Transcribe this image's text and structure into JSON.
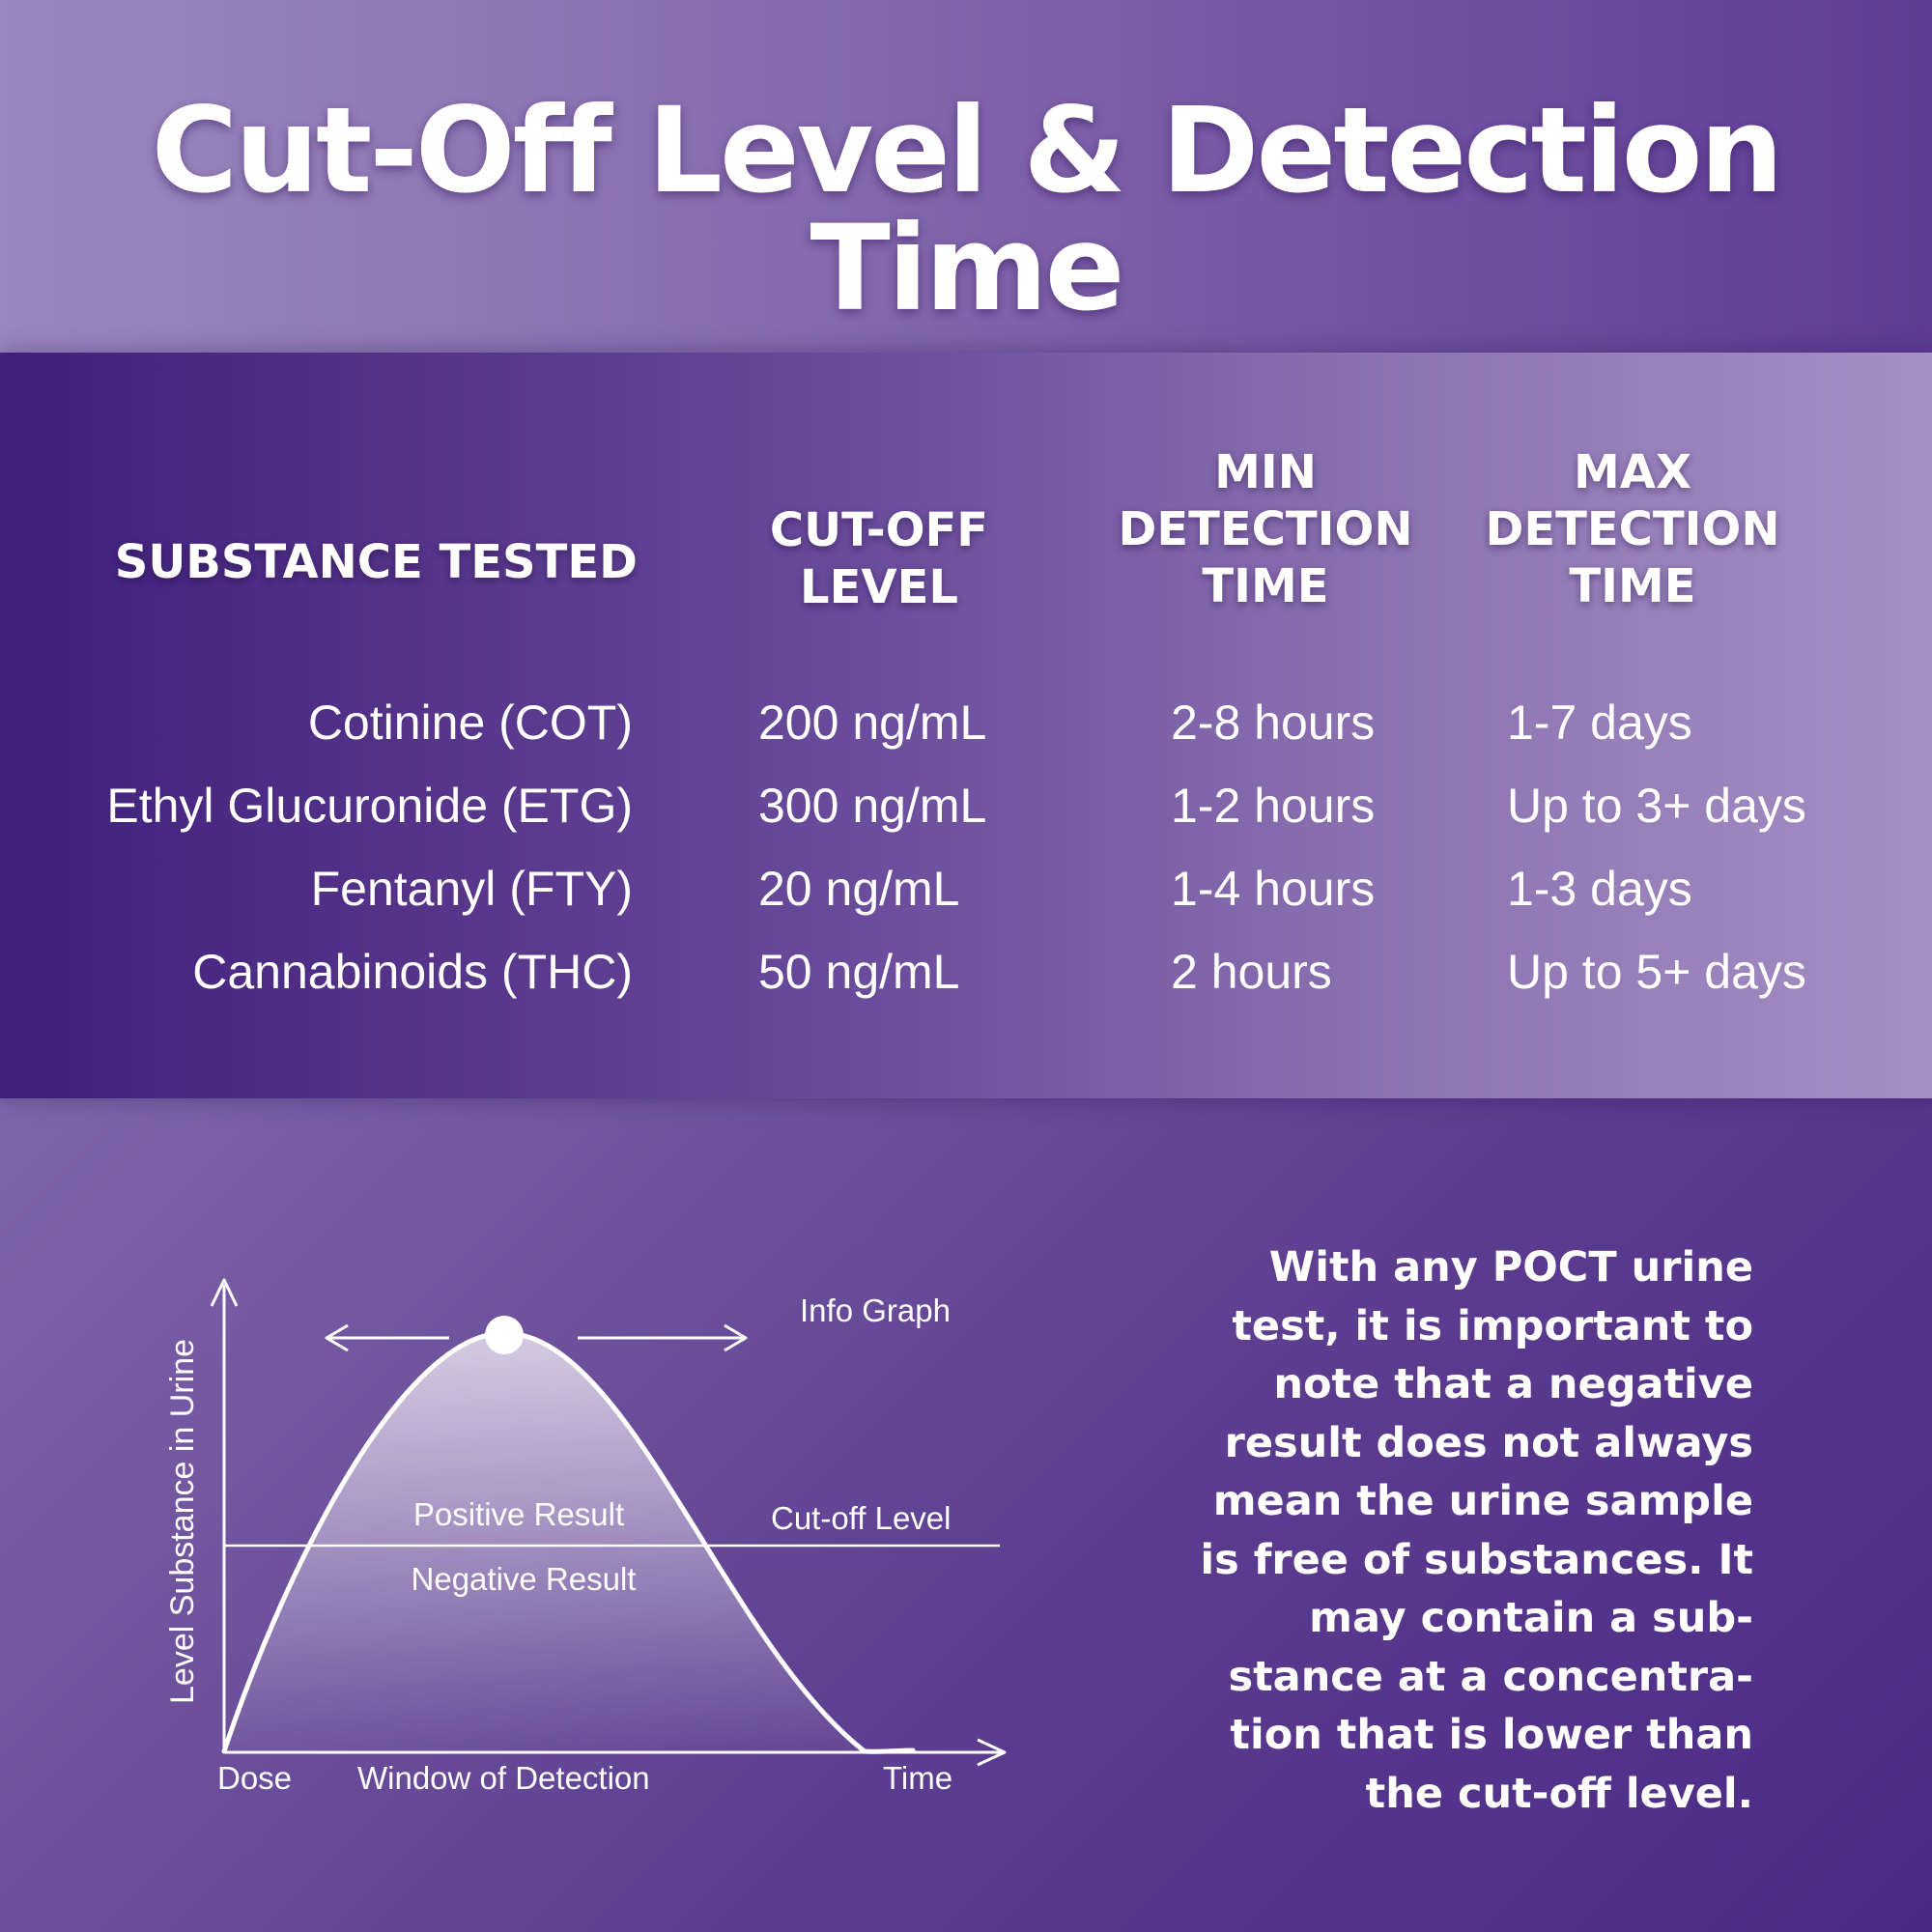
{
  "title": "Cut-Off Level & Detection Time",
  "table": {
    "headers": {
      "substance": "SUBSTANCE TESTED",
      "cutoff": [
        "CUT-OFF",
        "LEVEL"
      ],
      "min": [
        "MIN",
        "DETECTION",
        "TIME"
      ],
      "max": [
        "MAX",
        "DETECTION",
        "TIME"
      ]
    },
    "rows": [
      {
        "substance": "Cotinine (COT)",
        "cutoff": "200 ng/mL",
        "min": "2-8 hours",
        "max": "1-7 days"
      },
      {
        "substance": "Ethyl Glucuronide (ETG)",
        "cutoff": "300 ng/mL",
        "min": "1-2 hours",
        "max": "Up to 3+ days"
      },
      {
        "substance": "Fentanyl (FTY)",
        "cutoff": "20 ng/mL",
        "min": "1-4 hours",
        "max": "1-3 days"
      },
      {
        "substance": "Cannabinoids (THC)",
        "cutoff": "50 ng/mL",
        "min": "2 hours",
        "max": "Up to 5+ days"
      }
    ]
  },
  "graph": {
    "info_label": "Info Graph",
    "y_axis_label": "Level Substance in Urine",
    "positive_label": "Positive Result",
    "negative_label": "Negative Result",
    "cutoff_label": "Cut-off Level",
    "dose_label": "Dose",
    "window_label": "Window of Detection",
    "time_label": "Time"
  },
  "note": "With any POCT urine test, it is important to note that a negative result does not always mean the urine sample is free of substances. It may contain a sub-stance at a concentra-tion that is lower than the cut-off level.",
  "note_lines": [
    "With any POCT urine",
    "test, it is important to",
    "note that a negative",
    "result does not always",
    "mean the urine sample",
    "is free of substances. It",
    "may contain a sub-",
    "stance at a concentra-",
    "tion that is lower than",
    "the cut-off level."
  ],
  "colors": {
    "text": "#ffffff",
    "deep_purple": "#3e1f7c",
    "light_purple": "#a58fc4"
  }
}
